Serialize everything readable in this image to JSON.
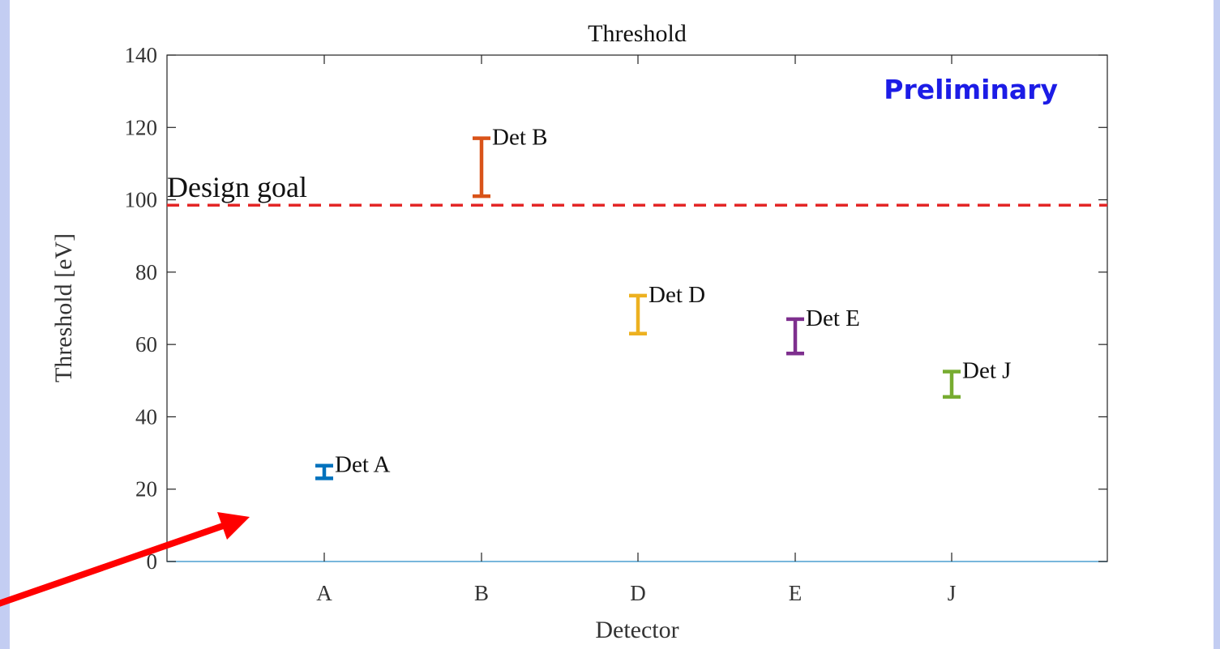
{
  "chart_data": {
    "type": "errorbar",
    "title": "Threshold",
    "xlabel": "Detector",
    "ylabel": "Threshold [eV]",
    "categories": [
      "A",
      "B",
      "D",
      "E",
      "J"
    ],
    "ylim": [
      0,
      140
    ],
    "yticks": [
      0,
      20,
      40,
      60,
      80,
      100,
      120,
      140
    ],
    "grid": false,
    "points": [
      {
        "category": "A",
        "low": 23,
        "high": 26.5,
        "label": "Det A",
        "color": "#0072BD"
      },
      {
        "category": "B",
        "low": 101,
        "high": 117,
        "label": "Det B",
        "color": "#D95319"
      },
      {
        "category": "D",
        "low": 63,
        "high": 73.5,
        "label": "Det D",
        "color": "#EDB120"
      },
      {
        "category": "E",
        "low": 57.5,
        "high": 67,
        "label": "Det E",
        "color": "#7E2F8E"
      },
      {
        "category": "J",
        "low": 45.5,
        "high": 52.5,
        "label": "Det J",
        "color": "#77AC30"
      }
    ],
    "reference_line": {
      "value": 98.5,
      "label": "Design goal",
      "style": "dashed",
      "color": "#E32626"
    },
    "annotation": {
      "text": "Preliminary",
      "color": "#1C1CE6",
      "placement": "top-right"
    }
  },
  "colors": {
    "slide_gradient": "#C8D2F4",
    "arrow": "#FF0000",
    "baseline": "#5AAEE0"
  }
}
